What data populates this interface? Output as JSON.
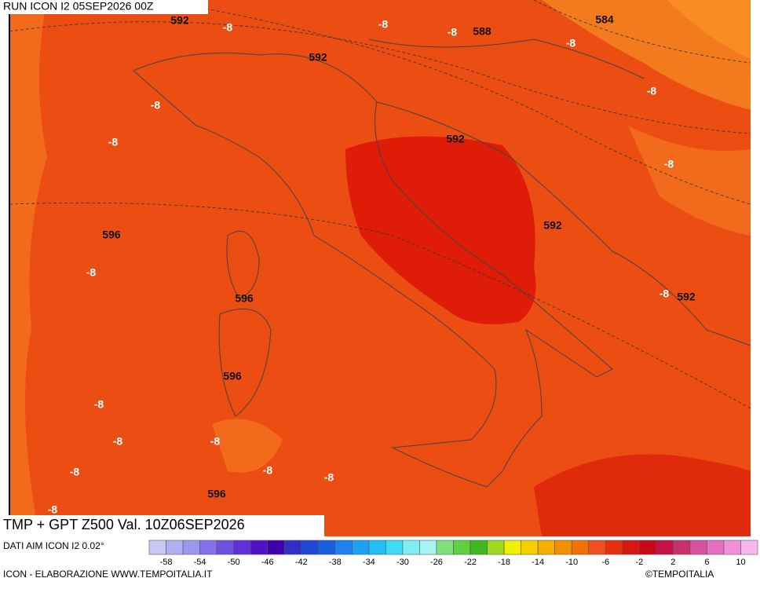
{
  "header": {
    "run": "RUN ICON I2 05SEP2026 00Z"
  },
  "footer": {
    "title": "TMP + GPT Z500 Val. 10Z06SEP2026",
    "source": "DATI AIM ICON I2 0.02°",
    "credit": "ICON - ELABORAZIONE WWW.TEMPOITALIA.IT",
    "brand": "©TEMPOITALIA"
  },
  "map_labels": [
    592,
    -8,
    -8,
    -8,
    588,
    584,
    -8,
    592,
    -8,
    -8,
    -8,
    592,
    -8,
    592,
    596,
    -8,
    -8,
    592,
    596,
    596,
    -8,
    -8,
    -8,
    -8,
    -8,
    -8,
    596,
    -8
  ],
  "colorbar": {
    "colors": [
      "#c8c8f4",
      "#b0b0f0",
      "#9898ec",
      "#8470e8",
      "#7050e0",
      "#6030d8",
      "#5010c8",
      "#4000b0",
      "#3030c8",
      "#2048d8",
      "#1860e0",
      "#2080f0",
      "#20a0f0",
      "#20c0f4",
      "#40dcf4",
      "#80eef4",
      "#a8f4f0",
      "#80e080",
      "#60d040",
      "#40b820",
      "#a0d820",
      "#f0f000",
      "#f4d000",
      "#f4b000",
      "#f49000",
      "#f47000",
      "#f05020",
      "#e83010",
      "#d81810",
      "#c80818",
      "#c81048",
      "#c83070",
      "#d850a0",
      "#e470c0",
      "#f090d8",
      "#f8b8ec"
    ],
    "labels": [
      -58,
      -54,
      -50,
      -46,
      -42,
      -38,
      -34,
      -30,
      -26,
      -22,
      -18,
      -14,
      -10,
      -6,
      -2,
      2,
      6,
      10
    ]
  }
}
